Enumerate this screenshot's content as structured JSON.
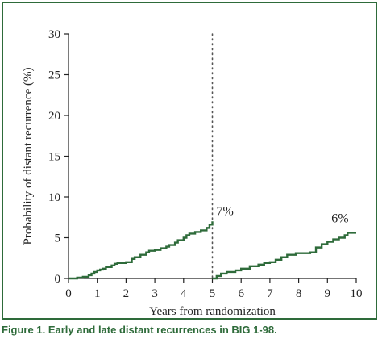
{
  "caption": {
    "figure_label": "Figure 1.",
    "text": "Early and late distant recurrences in BIG 1-98."
  },
  "colors": {
    "frame": "#2e6b3a",
    "curve": "#2e6b3a",
    "axis": "#222222",
    "divider": "#555555"
  },
  "chart_data": {
    "type": "line",
    "title": "",
    "xlabel": "Years from randomization",
    "ylabel": "Probability of distant recurrence (%)",
    "xlim": [
      0,
      10
    ],
    "ylim": [
      0,
      30
    ],
    "x_ticks": [
      0,
      1,
      2,
      3,
      4,
      5,
      6,
      7,
      8,
      9,
      10
    ],
    "y_ticks": [
      0,
      5,
      10,
      15,
      20,
      25,
      30
    ],
    "grid": false,
    "legend": "none",
    "vertical_reference_line": {
      "x": 5,
      "style": "dotted"
    },
    "series": [
      {
        "name": "",
        "segment": "early",
        "step": true,
        "x": [
          0,
          0.3,
          0.5,
          0.7,
          0.8,
          0.9,
          1.0,
          1.1,
          1.2,
          1.3,
          1.5,
          1.6,
          1.7,
          2.0,
          2.2,
          2.3,
          2.5,
          2.7,
          2.8,
          3.0,
          3.2,
          3.4,
          3.5,
          3.7,
          3.8,
          4.0,
          4.1,
          4.2,
          4.4,
          4.6,
          4.8,
          4.9,
          5.0
        ],
        "y": [
          0,
          0.1,
          0.2,
          0.4,
          0.6,
          0.8,
          1.0,
          1.1,
          1.2,
          1.4,
          1.6,
          1.8,
          1.9,
          2.0,
          2.4,
          2.6,
          2.9,
          3.2,
          3.4,
          3.5,
          3.7,
          3.9,
          4.1,
          4.4,
          4.7,
          5.0,
          5.3,
          5.5,
          5.7,
          5.9,
          6.2,
          6.6,
          7.0
        ]
      },
      {
        "name": "",
        "segment": "late",
        "step": true,
        "x": [
          5.0,
          5.15,
          5.3,
          5.5,
          5.8,
          6.0,
          6.3,
          6.6,
          6.8,
          7.0,
          7.2,
          7.4,
          7.6,
          7.9,
          8.1,
          8.4,
          8.6,
          8.8,
          9.0,
          9.2,
          9.4,
          9.6,
          9.7,
          10.0
        ],
        "y": [
          0,
          0.3,
          0.6,
          0.8,
          1.0,
          1.2,
          1.5,
          1.7,
          1.9,
          2.0,
          2.3,
          2.6,
          2.9,
          3.1,
          3.1,
          3.2,
          3.8,
          4.2,
          4.5,
          4.8,
          5.0,
          5.3,
          5.6,
          5.6
        ]
      }
    ],
    "annotations": [
      {
        "text": "7%",
        "x": 5.0,
        "y": 7.0
      },
      {
        "text": "6%",
        "x": 9.7,
        "y": 5.6
      }
    ]
  }
}
